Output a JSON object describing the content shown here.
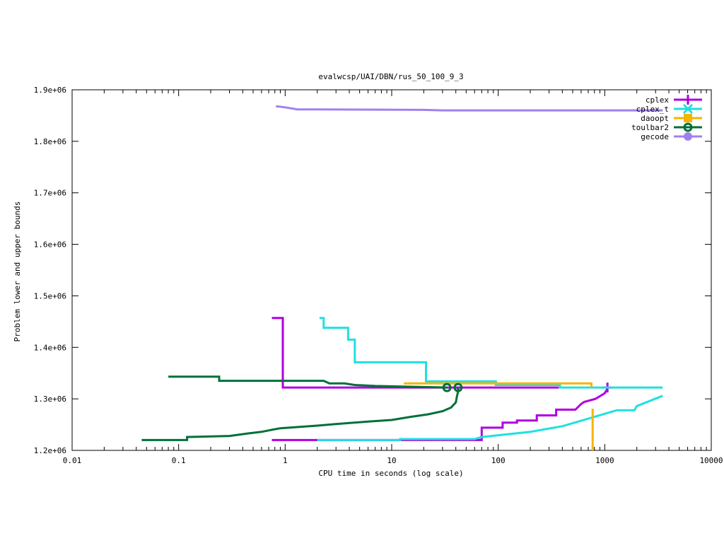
{
  "chart_data": {
    "type": "line",
    "title": "evalwcsp/UAI/DBN/rus_50_100_9_3",
    "xlabel": "CPU time in seconds (log scale)",
    "ylabel": "Problem lower and upper bounds",
    "x_scale": "log",
    "xlim": [
      0.01,
      10000
    ],
    "ylim": [
      1200000,
      1900000
    ],
    "x_ticks": [
      {
        "v": 0.01,
        "label": "0.01"
      },
      {
        "v": 0.1,
        "label": "0.1"
      },
      {
        "v": 1,
        "label": "1"
      },
      {
        "v": 10,
        "label": "10"
      },
      {
        "v": 100,
        "label": "100"
      },
      {
        "v": 1000,
        "label": "1000"
      },
      {
        "v": 10000,
        "label": "10000"
      }
    ],
    "y_ticks": [
      {
        "v": 1200000,
        "label": "1.2e+06"
      },
      {
        "v": 1300000,
        "label": "1.3e+06"
      },
      {
        "v": 1400000,
        "label": "1.4e+06"
      },
      {
        "v": 1500000,
        "label": "1.5e+06"
      },
      {
        "v": 1600000,
        "label": "1.6e+06"
      },
      {
        "v": 1700000,
        "label": "1.7e+06"
      },
      {
        "v": 1800000,
        "label": "1.8e+06"
      },
      {
        "v": 1900000,
        "label": "1.9e+06"
      }
    ],
    "grid": false,
    "legend_position": "top-right",
    "series": [
      {
        "name": "cplex",
        "color": "#b000e0",
        "marker": "plus",
        "lines": [
          [
            [
              0.75,
              1457000
            ],
            [
              0.95,
              1457000
            ],
            [
              0.95,
              1322000
            ],
            [
              370,
              1322000
            ]
          ],
          [
            [
              0.75,
              1220000
            ],
            [
              70,
              1220000
            ],
            [
              70,
              1244000
            ],
            [
              110,
              1244000
            ],
            [
              110,
              1254000
            ],
            [
              150,
              1254000
            ],
            [
              150,
              1258000
            ],
            [
              230,
              1258000
            ],
            [
              230,
              1268000
            ],
            [
              350,
              1268000
            ],
            [
              350,
              1279000
            ],
            [
              530,
              1279000
            ],
            [
              600,
              1290000
            ],
            [
              640,
              1294000
            ],
            [
              820,
              1300000
            ],
            [
              1000,
              1311000
            ],
            [
              1050,
              1318000
            ],
            [
              1060,
              1322000
            ]
          ]
        ],
        "markers": [
          [
            1060,
            1322000
          ]
        ]
      },
      {
        "name": "cplex_t",
        "color": "#20e0e0",
        "marker": "x",
        "lines": [
          [
            [
              2.1,
              1457000
            ],
            [
              2.3,
              1457000
            ],
            [
              2.3,
              1438000
            ],
            [
              3.9,
              1438000
            ],
            [
              3.9,
              1415000
            ],
            [
              4.5,
              1415000
            ],
            [
              4.5,
              1371000
            ],
            [
              21,
              1371000
            ],
            [
              21,
              1334000
            ],
            [
              95,
              1334000
            ],
            [
              95,
              1327000
            ],
            [
              380,
              1327000
            ],
            [
              380,
              1322000
            ],
            [
              3500,
              1322000
            ]
          ],
          [
            [
              2,
              1220000
            ],
            [
              12,
              1220000
            ],
            [
              12,
              1222000
            ],
            [
              60,
              1222000
            ],
            [
              70,
              1226000
            ],
            [
              200,
              1236000
            ],
            [
              400,
              1247000
            ],
            [
              800,
              1265000
            ],
            [
              1300,
              1278000
            ],
            [
              1900,
              1278000
            ],
            [
              2000,
              1286000
            ],
            [
              3500,
              1306000
            ]
          ]
        ],
        "markers": []
      },
      {
        "name": "daoopt",
        "color": "#f5b400",
        "marker": "square",
        "lines": [
          [
            [
              13,
              1330000
            ],
            [
              750,
              1330000
            ],
            [
              750,
              1322000
            ]
          ],
          [
            [
              770,
              1281000
            ],
            [
              770,
              1200000
            ]
          ]
        ],
        "markers": []
      },
      {
        "name": "toulbar2",
        "color": "#007038",
        "marker": "circle-open",
        "lines": [
          [
            [
              0.08,
              1343000
            ],
            [
              0.24,
              1343000
            ],
            [
              0.24,
              1335000
            ],
            [
              2.3,
              1335000
            ],
            [
              2.6,
              1330000
            ],
            [
              3.6,
              1330000
            ],
            [
              4.5,
              1327000
            ],
            [
              7,
              1325000
            ],
            [
              33,
              1322000
            ]
          ],
          [
            [
              0.045,
              1220000
            ],
            [
              0.12,
              1220000
            ],
            [
              0.12,
              1226000
            ],
            [
              0.3,
              1228000
            ],
            [
              0.45,
              1233000
            ],
            [
              0.6,
              1236000
            ],
            [
              0.75,
              1240000
            ],
            [
              0.9,
              1243000
            ],
            [
              2,
              1248000
            ],
            [
              3,
              1251000
            ],
            [
              6,
              1256000
            ],
            [
              10,
              1259000
            ],
            [
              15,
              1265000
            ],
            [
              22,
              1270000
            ],
            [
              30,
              1276000
            ],
            [
              36,
              1283000
            ],
            [
              40,
              1293000
            ],
            [
              41,
              1305000
            ],
            [
              42,
              1314000
            ],
            [
              42,
              1322000
            ]
          ]
        ],
        "markers": [
          [
            33,
            1322000
          ],
          [
            42,
            1322000
          ]
        ]
      },
      {
        "name": "gecode",
        "color": "#a080f0",
        "marker": "circle-filled",
        "lines": [
          [
            [
              0.82,
              1868000
            ],
            [
              1,
              1866000
            ],
            [
              1.3,
              1862000
            ],
            [
              2,
              1862000
            ],
            [
              20,
              1861000
            ],
            [
              30,
              1860000
            ],
            [
              3500,
              1860000
            ]
          ]
        ],
        "markers": []
      }
    ]
  }
}
